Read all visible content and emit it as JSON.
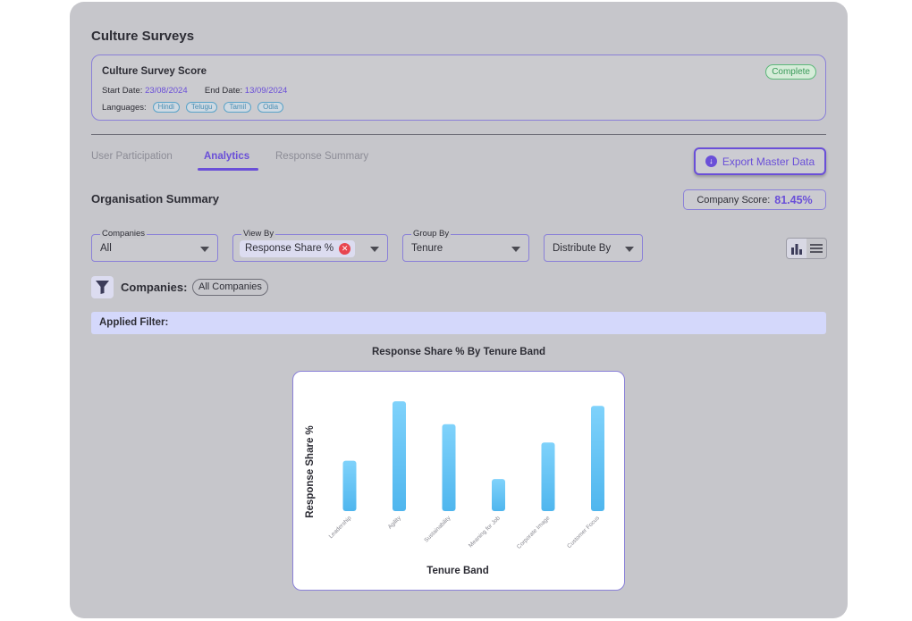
{
  "page": {
    "title": "Culture Surveys"
  },
  "survey": {
    "title": "Culture Survey Score",
    "status": "Complete",
    "start_label": "Start Date:",
    "start_date": "23/08/2024",
    "end_label": "End Date:",
    "end_date": "13/09/2024",
    "languages_label": "Languages:",
    "languages": [
      "Hindi",
      "Telugu",
      "Tamil",
      "Odia"
    ]
  },
  "tabs": [
    {
      "label": "User Participation",
      "active": false
    },
    {
      "label": "Analytics",
      "active": true
    },
    {
      "label": "Response Summary",
      "active": false
    }
  ],
  "export_button": {
    "label": "Export Master Data",
    "icon": "download-icon"
  },
  "summary": {
    "title": "Organisation Summary",
    "score_label": "Company Score:",
    "score_value": "81.45%"
  },
  "filters": {
    "companies": {
      "legend": "Companies",
      "value": "All"
    },
    "view_by": {
      "legend": "View By",
      "value": "Response Share %"
    },
    "group_by": {
      "legend": "Group By",
      "value": "Tenure"
    },
    "distribute_by": {
      "value": "Distribute By"
    }
  },
  "company_filter": {
    "label": "Companies:",
    "chip": "All Companies"
  },
  "applied_filter": {
    "label": "Applied Filter:"
  },
  "colors": {
    "accent": "#6a4fd8",
    "bar_top": "#7fd2fb",
    "bar_bottom": "#4fb6ee"
  },
  "chart_data": {
    "type": "bar",
    "title": "Response Share % By Tenure Band",
    "xlabel": "Tenure Band",
    "ylabel": "Response Share %",
    "categories": [
      "Leadership",
      "Agility",
      "Sustainability",
      "Meaning for Job",
      "Corporate Image",
      "Customer Focus"
    ],
    "values": [
      44,
      96,
      76,
      28,
      60,
      92
    ],
    "ylim": [
      0,
      100
    ],
    "grid": false
  }
}
